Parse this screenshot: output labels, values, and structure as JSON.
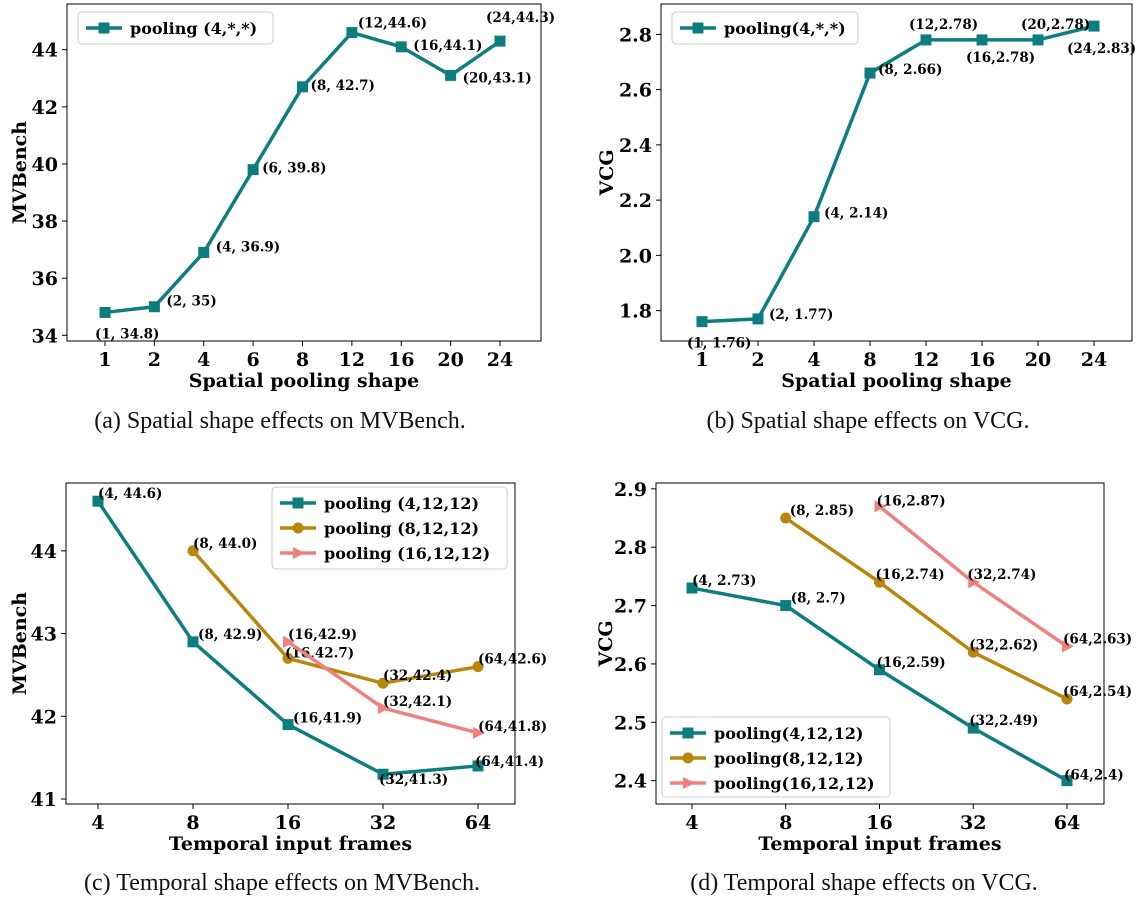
{
  "chart_data": [
    {
      "id": "a",
      "type": "line",
      "caption": "(a) Spatial shape effects on MVBench.",
      "xlabel": "Spatial pooling shape",
      "ylabel": "MVBench",
      "categories": [
        "1",
        "2",
        "4",
        "6",
        "8",
        "12",
        "16",
        "20",
        "24"
      ],
      "yticks": [
        "34",
        "36",
        "38",
        "40",
        "42",
        "44"
      ],
      "ylim": [
        33.8,
        45.6
      ],
      "legend_position": "upper-left",
      "series": [
        {
          "name": "pooling (4,*,*)",
          "marker": "square",
          "color": "#0d7d7d",
          "values": [
            34.8,
            35,
            36.9,
            39.8,
            42.7,
            44.6,
            44.1,
            43.1,
            44.3
          ],
          "labels": [
            "(1, 34.8)",
            "(2, 35)",
            "(4, 36.9)",
            "(6, 39.8)",
            "(8, 42.7)",
            "(12,44.6)",
            "(16,44.1)",
            "(20,43.1)",
            "(24,44.3)"
          ]
        }
      ]
    },
    {
      "id": "b",
      "type": "line",
      "caption": "(b) Spatial shape effects on VCG.",
      "xlabel": "Spatial pooling shape",
      "ylabel": "VCG",
      "categories": [
        "1",
        "2",
        "4",
        "8",
        "12",
        "16",
        "20",
        "24"
      ],
      "yticks": [
        "1.8",
        "2.0",
        "2.2",
        "2.4",
        "2.6",
        "2.8"
      ],
      "ylim": [
        1.69,
        2.91
      ],
      "legend_position": "upper-left",
      "series": [
        {
          "name": "pooling(4,*,*)",
          "marker": "square",
          "color": "#0d7d7d",
          "values": [
            1.76,
            1.77,
            2.14,
            2.66,
            2.78,
            2.78,
            2.78,
            2.83
          ],
          "labels": [
            "(1, 1.76)",
            "(2, 1.77)",
            "(4, 2.14)",
            "(8, 2.66)",
            "(12,2.78)",
            "(16,2.78)",
            "(20,2.78)",
            "(24,2.83)"
          ]
        }
      ]
    },
    {
      "id": "c",
      "type": "line",
      "caption": "(c) Temporal shape effects on MVBench.",
      "xlabel": "Temporal input frames",
      "ylabel": "MVBench",
      "categories": [
        "4",
        "8",
        "16",
        "32",
        "64"
      ],
      "yticks": [
        "41",
        "42",
        "43",
        "44"
      ],
      "ylim": [
        40.94,
        44.82
      ],
      "legend_position": "upper-right",
      "series": [
        {
          "name": "pooling (4,12,12)",
          "marker": "square",
          "color": "#0d7d7d",
          "x": [
            "4",
            "8",
            "16",
            "32",
            "64"
          ],
          "values": [
            44.6,
            42.9,
            41.9,
            41.3,
            41.4
          ],
          "labels": [
            "(4, 44.6)",
            "(8, 42.9)",
            "(16,41.9)",
            "(32,41.3)",
            "(64,41.4)"
          ]
        },
        {
          "name": "pooling (8,12,12)",
          "marker": "circle",
          "color": "#b8860b",
          "x": [
            "8",
            "16",
            "32",
            "64"
          ],
          "values": [
            44.0,
            42.7,
            42.4,
            42.6
          ],
          "labels": [
            "(8, 44.0)",
            "(16,42.7)",
            "(32,42.4)",
            "(64,42.6)"
          ]
        },
        {
          "name": "pooling (16,12,12)",
          "marker": "triangle-right",
          "color": "#f08080",
          "x": [
            "16",
            "32",
            "64"
          ],
          "values": [
            42.9,
            42.1,
            41.8
          ],
          "labels": [
            "(16,42.9)",
            "(32,42.1)",
            "(64,41.8)"
          ]
        }
      ]
    },
    {
      "id": "d",
      "type": "line",
      "caption": "(d) Temporal shape effects on VCG.",
      "xlabel": "Temporal input frames",
      "ylabel": "VCG",
      "categories": [
        "4",
        "8",
        "16",
        "32",
        "64"
      ],
      "yticks": [
        "2.4",
        "2.5",
        "2.6",
        "2.7",
        "2.8",
        "2.9"
      ],
      "ylim": [
        2.36,
        2.91
      ],
      "legend_position": "lower-left",
      "series": [
        {
          "name": "pooling(4,12,12)",
          "marker": "square",
          "color": "#0d7d7d",
          "x": [
            "4",
            "8",
            "16",
            "32",
            "64"
          ],
          "values": [
            2.73,
            2.7,
            2.59,
            2.49,
            2.4
          ],
          "labels": [
            "(4, 2.73)",
            "(8, 2.7)",
            "(16,2.59)",
            "(32,2.49)",
            "(64,2.4)"
          ]
        },
        {
          "name": "pooling(8,12,12)",
          "marker": "circle",
          "color": "#b8860b",
          "x": [
            "8",
            "16",
            "32",
            "64"
          ],
          "values": [
            2.85,
            2.74,
            2.62,
            2.54
          ],
          "labels": [
            "(8, 2.85)",
            "(16,2.74)",
            "(32,2.62)",
            "(64,2.54)"
          ]
        },
        {
          "name": "pooling(16,12,12)",
          "marker": "triangle-right",
          "color": "#f08080",
          "x": [
            "16",
            "32",
            "64"
          ],
          "values": [
            2.87,
            2.74,
            2.63
          ],
          "labels": [
            "(16,2.87)",
            "(32,2.74)",
            "(64,2.63)"
          ]
        }
      ]
    }
  ]
}
